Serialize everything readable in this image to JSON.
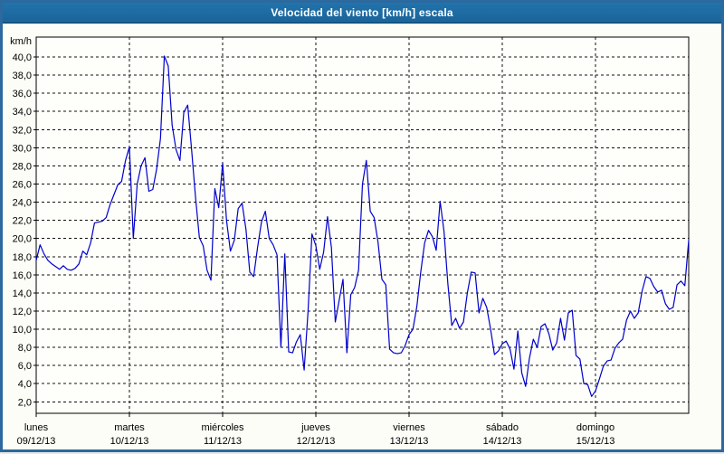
{
  "window": {
    "title": "Velocidad del viento [km/h] escala"
  },
  "colors": {
    "window_border": "#2b699e",
    "titlebar_bg": "#1e6ba4",
    "titlebar_text": "#ffffff",
    "background": "#fbfdf6",
    "plot_bg": "#fefefb",
    "frame": "#000000",
    "grid": "#111111",
    "line": "#0000cd",
    "label_text": "#000000"
  },
  "chart_data": {
    "type": "line",
    "title": "Velocidad del viento [km/h] escala",
    "ylabel": "km/h",
    "xlabel": "",
    "legend": "none",
    "grid": "dashed",
    "ylim": [
      0.7,
      42.2
    ],
    "y_tick_values": [
      40,
      38,
      36,
      34,
      32,
      30,
      28,
      26,
      24,
      22,
      20,
      18,
      16,
      14,
      12,
      10,
      8,
      6,
      4,
      2
    ],
    "y_tick_labels": [
      "40,0",
      "38,0",
      "36,0",
      "34,0",
      "32,0",
      "30,0",
      "28,0",
      "26,0",
      "24,0",
      "22,0",
      "20,0",
      "18,0",
      "16,0",
      "14,0",
      "12,0",
      "10,0",
      "8,0",
      "6,0",
      "4,0",
      "2,0"
    ],
    "x_days": [
      {
        "name": "lunes",
        "date": "09/12/13"
      },
      {
        "name": "martes",
        "date": "10/12/13"
      },
      {
        "name": "miércoles",
        "date": "11/12/13"
      },
      {
        "name": "jueves",
        "date": "12/12/13"
      },
      {
        "name": "viernes",
        "date": "13/12/13"
      },
      {
        "name": "sábado",
        "date": "14/12/13"
      },
      {
        "name": "domingo",
        "date": "15/12/13"
      }
    ],
    "x_range_hours": [
      0,
      168
    ],
    "sampling_hours": 1,
    "series": [
      {
        "name": "Velocidad del viento",
        "unit": "km/h",
        "values": [
          17.6,
          19.3,
          18.3,
          17.6,
          17.2,
          16.9,
          16.6,
          17.0,
          16.6,
          16.5,
          16.7,
          17.2,
          18.6,
          18.2,
          19.5,
          21.7,
          21.8,
          21.9,
          22.3,
          23.7,
          24.8,
          25.9,
          26.3,
          28.6,
          30.1,
          20.0,
          26.0,
          28.0,
          28.9,
          25.2,
          25.4,
          27.6,
          31.0,
          40.1,
          39.0,
          32.5,
          29.8,
          28.6,
          33.9,
          34.7,
          29.8,
          24.6,
          20.1,
          19.2,
          16.5,
          15.4,
          25.5,
          23.4,
          28.3,
          22.0,
          18.6,
          19.8,
          23.3,
          23.9,
          21.0,
          16.3,
          15.8,
          19.0,
          21.8,
          23.0,
          20.0,
          19.3,
          18.2,
          8.0,
          18.3,
          7.5,
          7.4,
          8.6,
          9.4,
          5.5,
          12.0,
          20.5,
          19.2,
          16.6,
          18.5,
          22.4,
          19.0,
          10.8,
          13.2,
          15.5,
          7.4,
          13.8,
          14.6,
          16.5,
          26.0,
          28.6,
          23.0,
          22.3,
          19.6,
          15.5,
          14.9,
          7.8,
          7.4,
          7.3,
          7.4,
          8.2,
          9.4,
          10.0,
          12.5,
          16.3,
          19.5,
          20.9,
          20.2,
          18.7,
          24.1,
          20.8,
          15.0,
          10.4,
          11.2,
          10.1,
          10.8,
          14.0,
          16.3,
          16.2,
          11.8,
          13.4,
          12.4,
          10.0,
          7.2,
          7.6,
          8.4,
          8.7,
          7.8,
          5.6,
          9.8,
          5.2,
          3.7,
          6.8,
          8.9,
          8.0,
          10.3,
          10.6,
          9.5,
          7.7,
          8.5,
          11.2,
          8.8,
          11.8,
          12.1,
          7.1,
          6.7,
          4.0,
          3.9,
          2.6,
          3.2,
          4.5,
          5.9,
          6.5,
          6.6,
          7.9,
          8.5,
          8.9,
          11.0,
          12.0,
          11.2,
          11.8,
          14.2,
          15.8,
          15.6,
          14.7,
          14.1,
          14.3,
          12.8,
          12.2,
          12.4,
          14.9,
          15.3,
          14.8,
          19.8
        ]
      }
    ]
  }
}
